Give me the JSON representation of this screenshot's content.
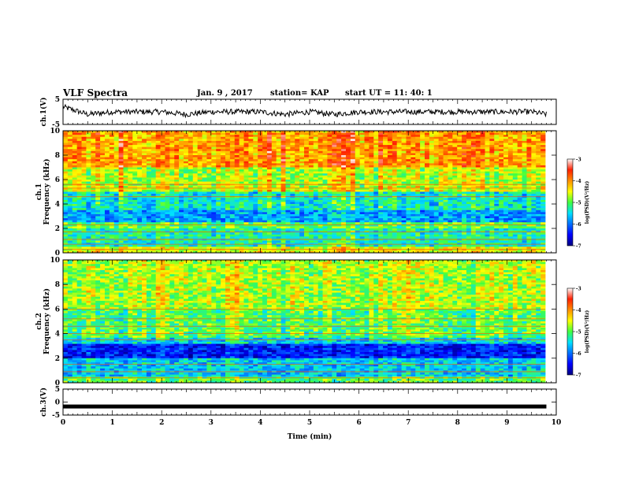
{
  "header": {
    "title": "VLF Spectra",
    "date": "Jan. 9 , 2017",
    "station": "station= KAP",
    "start": "start UT = 11: 40: 1"
  },
  "chart_data": [
    {
      "type": "line",
      "panel": "ch1-waveform",
      "ylabel": "ch.1(V)",
      "ylim": [
        -5,
        5
      ],
      "yticks": [
        "5",
        "-5"
      ],
      "xlim": [
        0,
        10
      ],
      "line_color": "#000000",
      "approx_x_min": [
        0,
        0.5,
        1,
        1.5,
        2,
        2.5,
        3,
        3.5,
        4,
        4.5,
        5,
        5.5,
        6,
        6.5,
        7,
        7.5,
        8,
        8.5,
        9,
        9.5,
        9.8
      ],
      "approx_y_V": [
        2,
        -1,
        0,
        0,
        0,
        -1,
        0,
        0,
        0,
        -1,
        0,
        -1,
        0,
        0,
        0,
        0,
        0,
        0,
        0,
        0,
        -1
      ]
    },
    {
      "type": "heatmap",
      "panel": "ch1-spectrogram",
      "ylabel": "ch.1\nFrequency (kHz)",
      "ylim": [
        0,
        10
      ],
      "yticks": [
        "0",
        "2",
        "4",
        "6",
        "8",
        "10"
      ],
      "xlim": [
        0,
        10
      ],
      "colorbar": {
        "label": "log(PSD)(V²/Hz)",
        "range": [
          -7,
          -3
        ],
        "ticks": [
          "-3",
          "-4",
          "-5",
          "-6",
          "-7"
        ]
      },
      "approx_mean_log_psd_by_band": [
        {
          "freq_kHz": [
            0,
            0.5
          ],
          "value": -4.5
        },
        {
          "freq_kHz": [
            0.5,
            2
          ],
          "value": -5.3
        },
        {
          "freq_kHz": [
            2,
            2.5
          ],
          "value": -5.0
        },
        {
          "freq_kHz": [
            2.5,
            3.5
          ],
          "value": -5.8
        },
        {
          "freq_kHz": [
            3.5,
            5
          ],
          "value": -5.4
        },
        {
          "freq_kHz": [
            5,
            5.5
          ],
          "value": -4.6
        },
        {
          "freq_kHz": [
            5.5,
            7
          ],
          "value": -4.7
        },
        {
          "freq_kHz": [
            7,
            10
          ],
          "value": -4.1
        }
      ]
    },
    {
      "type": "heatmap",
      "panel": "ch2-spectrogram",
      "ylabel": "ch.2\nFrequency (kHz)",
      "ylim": [
        0,
        10
      ],
      "yticks": [
        "0",
        "2",
        "4",
        "6",
        "8",
        "10"
      ],
      "xlim": [
        0,
        10
      ],
      "colorbar": {
        "label": "log(PSD)(V²/Hz)",
        "range": [
          -7,
          -3
        ],
        "ticks": [
          "-3",
          "-4",
          "-5",
          "-6",
          "-7"
        ]
      },
      "approx_mean_log_psd_by_band": [
        {
          "freq_kHz": [
            0,
            0.5
          ],
          "value": -5.0
        },
        {
          "freq_kHz": [
            0.5,
            2
          ],
          "value": -5.6
        },
        {
          "freq_kHz": [
            2,
            3.2
          ],
          "value": -6.4
        },
        {
          "freq_kHz": [
            3.2,
            3.6
          ],
          "value": -5.5
        },
        {
          "freq_kHz": [
            3.6,
            6
          ],
          "value": -5.0
        },
        {
          "freq_kHz": [
            6,
            10
          ],
          "value": -4.7
        }
      ]
    },
    {
      "type": "line",
      "panel": "ch3-waveform",
      "ylabel": "ch.3(V)",
      "ylim": [
        -5,
        5
      ],
      "yticks": [
        "5",
        "0",
        "-5"
      ],
      "xlim": [
        0,
        10
      ],
      "xlabel": "Time (min)",
      "xticks": [
        "0",
        "1",
        "2",
        "3",
        "4",
        "5",
        "6",
        "7",
        "8",
        "9",
        "10"
      ],
      "line_color": "#000000",
      "approx_x_min": [
        0,
        9.8
      ],
      "approx_y_V": [
        -1.7,
        -1.7
      ]
    }
  ]
}
